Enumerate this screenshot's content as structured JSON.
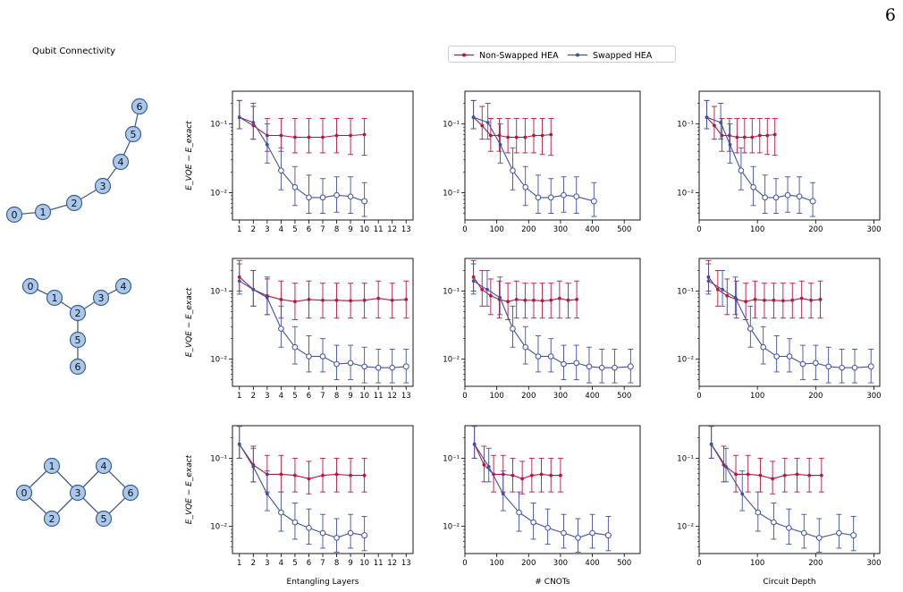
{
  "page_number": "6",
  "connectivity_title": "Qubit Connectivity",
  "legend": [
    {
      "label": "Non-Swapped HEA",
      "color": "#b5173f"
    },
    {
      "label": "Swapped HEA",
      "color": "#3f51a3"
    }
  ],
  "x_axis_labels": [
    "Entangling Layers",
    "# CNOTs",
    "Circuit Depth"
  ],
  "y_axis_label": "E_VQE − E_exact",
  "graphs": [
    {
      "nodes": [
        {
          "id": "0"
        },
        {
          "id": "1"
        },
        {
          "id": "2"
        },
        {
          "id": "3"
        },
        {
          "id": "4"
        },
        {
          "id": "5"
        },
        {
          "id": "6"
        }
      ],
      "edges": [
        [
          "0",
          "1"
        ],
        [
          "1",
          "2"
        ],
        [
          "2",
          "3"
        ],
        [
          "3",
          "4"
        ],
        [
          "4",
          "5"
        ],
        [
          "5",
          "6"
        ]
      ]
    },
    {
      "nodes": [
        {
          "id": "0"
        },
        {
          "id": "1"
        },
        {
          "id": "2"
        },
        {
          "id": "3"
        },
        {
          "id": "4"
        },
        {
          "id": "5"
        },
        {
          "id": "6"
        }
      ],
      "edges": [
        [
          "0",
          "1"
        ],
        [
          "1",
          "2"
        ],
        [
          "2",
          "3"
        ],
        [
          "3",
          "4"
        ],
        [
          "2",
          "5"
        ],
        [
          "5",
          "6"
        ]
      ]
    },
    {
      "nodes": [
        {
          "id": "0"
        },
        {
          "id": "1"
        },
        {
          "id": "2"
        },
        {
          "id": "3"
        },
        {
          "id": "4"
        },
        {
          "id": "5"
        },
        {
          "id": "6"
        }
      ],
      "edges": [
        [
          "0",
          "1"
        ],
        [
          "0",
          "2"
        ],
        [
          "1",
          "3"
        ],
        [
          "2",
          "3"
        ],
        [
          "3",
          "4"
        ],
        [
          "3",
          "5"
        ],
        [
          "4",
          "6"
        ],
        [
          "5",
          "6"
        ]
      ]
    }
  ],
  "chart_data": {
    "type": "line",
    "yscale": "log",
    "ylim": [
      0.004,
      0.3
    ],
    "yticks": [
      "10⁻¹",
      "10⁻²"
    ],
    "columns": [
      {
        "xlabel": "Entangling Layers",
        "xlim": [
          0.5,
          13.5
        ],
        "xticks": [
          1,
          2,
          3,
          4,
          5,
          6,
          7,
          8,
          9,
          10,
          11,
          12,
          13
        ]
      },
      {
        "xlabel": "# CNOTs",
        "xlim": [
          0,
          550
        ],
        "xticks": [
          0,
          100,
          200,
          300,
          400,
          500
        ]
      },
      {
        "xlabel": "Circuit Depth",
        "xlim": [
          0,
          310
        ],
        "xticks": [
          0,
          100,
          200,
          300
        ]
      }
    ],
    "rows": [
      {
        "layers": [
          1,
          2,
          3,
          4,
          5,
          6,
          7,
          8,
          9,
          10
        ],
        "series": [
          {
            "name": "Non-Swapped HEA",
            "y": [
              0.125,
              0.095,
              0.068,
              0.068,
              0.064,
              0.064,
              0.064,
              0.068,
              0.068,
              0.07
            ],
            "lo": [
              0.085,
              0.06,
              0.04,
              0.04,
              0.038,
              0.038,
              0.038,
              0.038,
              0.036,
              0.035
            ],
            "hi": [
              0.22,
              0.18,
              0.12,
              0.12,
              0.12,
              0.12,
              0.12,
              0.12,
              0.12,
              0.12
            ],
            "cnots": [
              27,
              54,
              81,
              108,
              135,
              162,
              189,
              216,
              243,
              270
            ],
            "depth": [
              13,
              26,
              39,
              52,
              65,
              78,
              91,
              104,
              117,
              130
            ]
          },
          {
            "name": "Swapped HEA",
            "y": [
              0.125,
              0.105,
              0.05,
              0.021,
              0.012,
              0.0085,
              0.0085,
              0.0092,
              0.0088,
              0.0075
            ],
            "lo": [
              0.085,
              0.06,
              0.027,
              0.011,
              0.0065,
              0.005,
              0.005,
              0.0052,
              0.005,
              0.0045
            ],
            "hi": [
              0.22,
              0.2,
              0.1,
              0.045,
              0.024,
              0.018,
              0.016,
              0.017,
              0.017,
              0.014
            ],
            "cnots": [
              27,
              72,
              111,
              150,
              190,
              230,
              270,
              310,
              350,
              405
            ],
            "depth": [
              13,
              37,
              53,
              72,
              93,
              113,
              132,
              152,
              172,
              195
            ]
          }
        ]
      },
      {
        "layers": [
          1,
          2,
          3,
          4,
          5,
          6,
          7,
          8,
          9,
          10,
          11,
          12,
          13
        ],
        "series": [
          {
            "name": "Non-Swapped HEA",
            "y": [
              0.16,
              0.105,
              0.085,
              0.075,
              0.07,
              0.075,
              0.073,
              0.073,
              0.072,
              0.073,
              0.078,
              0.073,
              0.075
            ],
            "lo": [
              0.1,
              0.06,
              0.045,
              0.04,
              0.038,
              0.04,
              0.04,
              0.04,
              0.04,
              0.04,
              0.04,
              0.04,
              0.04
            ],
            "hi": [
              0.28,
              0.2,
              0.15,
              0.14,
              0.13,
              0.14,
              0.13,
              0.13,
              0.13,
              0.13,
              0.14,
              0.13,
              0.14
            ],
            "cnots": [
              27,
              54,
              81,
              108,
              135,
              162,
              189,
              216,
              243,
              270,
              297,
              324,
              351
            ],
            "depth": [
              16,
              32,
              48,
              64,
              80,
              96,
              112,
              128,
              144,
              160,
              176,
              192,
              208
            ]
          },
          {
            "name": "Swapped HEA",
            "y": [
              0.14,
              0.105,
              0.08,
              0.028,
              0.015,
              0.011,
              0.011,
              0.0085,
              0.0088,
              0.0078,
              0.0075,
              0.0075,
              0.0078
            ],
            "lo": [
              0.09,
              0.06,
              0.045,
              0.015,
              0.0085,
              0.0065,
              0.0065,
              0.005,
              0.005,
              0.0045,
              0.0045,
              0.0045,
              0.0045
            ],
            "hi": [
              0.25,
              0.2,
              0.16,
              0.06,
              0.03,
              0.022,
              0.02,
              0.016,
              0.016,
              0.015,
              0.014,
              0.014,
              0.014
            ],
            "cnots": [
              27,
              70,
              110,
              150,
              190,
              230,
              270,
              310,
              350,
              390,
              430,
              470,
              520
            ],
            "depth": [
              16,
              40,
              62,
              88,
              110,
              133,
              155,
              178,
              200,
              222,
              245,
              267,
              295
            ]
          }
        ]
      },
      {
        "layers": [
          1,
          2,
          3,
          4,
          5,
          6,
          7,
          8,
          9,
          10
        ],
        "series": [
          {
            "name": "Non-Swapped HEA",
            "y": [
              0.16,
              0.08,
              0.058,
              0.058,
              0.056,
              0.05,
              0.056,
              0.058,
              0.056,
              0.056
            ],
            "lo": [
              0.1,
              0.045,
              0.032,
              0.032,
              0.032,
              0.03,
              0.032,
              0.032,
              0.032,
              0.032
            ],
            "hi": [
              0.3,
              0.15,
              0.11,
              0.11,
              0.1,
              0.09,
              0.1,
              0.1,
              0.1,
              0.1
            ],
            "cnots": [
              30,
              60,
              90,
              120,
              150,
              180,
              210,
              240,
              270,
              300
            ],
            "depth": [
              21,
              42,
              63,
              84,
              105,
              126,
              147,
              168,
              189,
              210
            ]
          },
          {
            "name": "Swapped HEA",
            "y": [
              0.16,
              0.075,
              0.03,
              0.016,
              0.0115,
              0.0095,
              0.008,
              0.0068,
              0.008,
              0.0074
            ],
            "lo": [
              0.1,
              0.045,
              0.017,
              0.0085,
              0.0065,
              0.0055,
              0.0048,
              0.0042,
              0.0048,
              0.0044
            ],
            "hi": [
              0.3,
              0.14,
              0.065,
              0.032,
              0.022,
              0.018,
              0.015,
              0.013,
              0.015,
              0.014
            ],
            "cnots": [
              30,
              75,
              120,
              170,
              215,
              260,
              310,
              355,
              400,
              450
            ],
            "depth": [
              21,
              46,
              74,
              101,
              128,
              154,
              180,
              206,
              240,
              265
            ]
          }
        ]
      }
    ]
  }
}
